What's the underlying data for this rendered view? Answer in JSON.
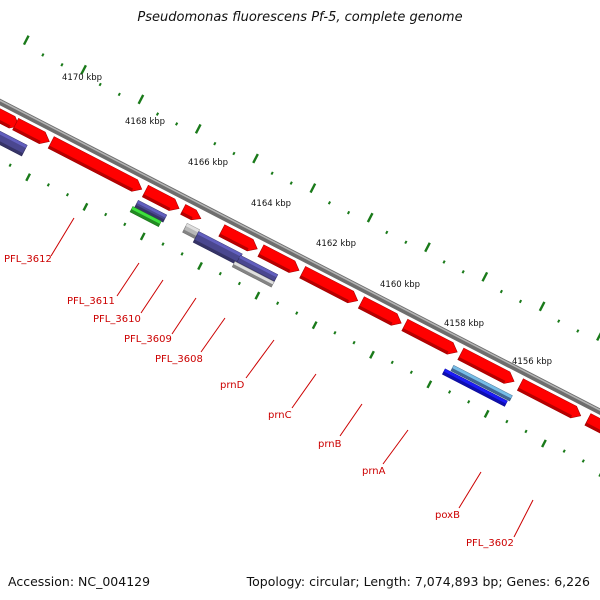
{
  "title": "Pseudomonas fluorescens Pf-5, complete genome",
  "footer": {
    "accession": "Accession: NC_004129",
    "summary": "Topology: circular; Length: 7,074,893 bp; Genes: 6,226"
  },
  "colors": {
    "backbone": "#8c8c8c",
    "tick": "#1a7a1a",
    "gene_red": "#ff0000",
    "gene_purple": "#4a478f",
    "gene_green": "#2fbf2f",
    "gene_gray": "#b8b8b8",
    "gene_blue": "#1414f0",
    "gene_cyan": "#23c9c9",
    "label": "#cc0000"
  },
  "scale_labels": [
    "4170 kbp",
    "4168 kbp",
    "4166 kbp",
    "4164 kbp",
    "4162 kbp",
    "4160 kbp",
    "4158 kbp",
    "4156 kbp"
  ],
  "gene_labels": [
    "PFL_3612",
    "PFL_3611",
    "PFL_3610",
    "PFL_3609",
    "PFL_3608",
    "prnD",
    "prnC",
    "prnB",
    "prnA",
    "poxB",
    "PFL_3602"
  ]
}
